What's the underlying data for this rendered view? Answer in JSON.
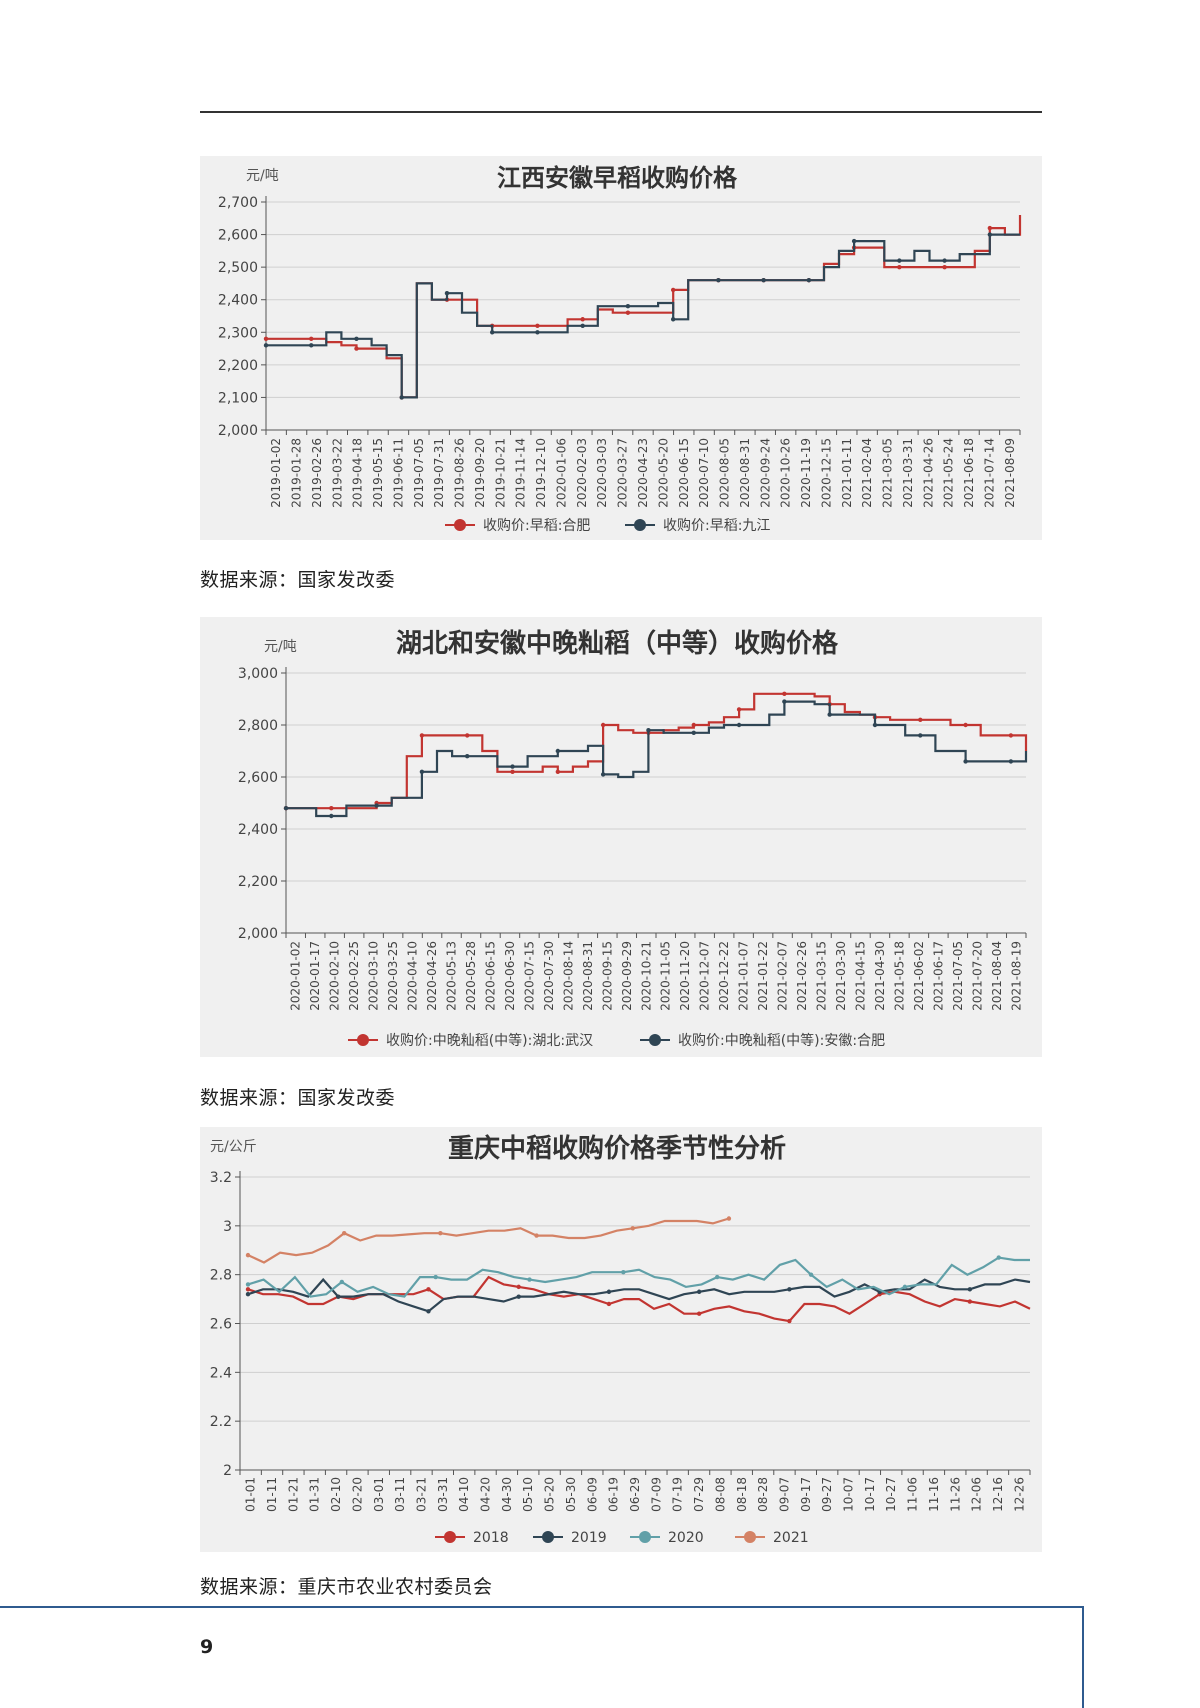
{
  "page_number": "9",
  "sources": [
    "数据来源：国家发改委",
    "数据来源：国家发改委",
    "数据来源：重庆市农业农村委员会"
  ],
  "chart_data": [
    {
      "type": "line",
      "title": "江西安徽早稻收购价格",
      "unit": "元/吨",
      "ylim": [
        2000,
        2700
      ],
      "yticks": [
        "2,000",
        "2,100",
        "2,200",
        "2,300",
        "2,400",
        "2,500",
        "2,600",
        "2,700"
      ],
      "x_tick_labels": [
        "2019-01-02",
        "2019-01-28",
        "2019-02-26",
        "2019-03-22",
        "2019-04-18",
        "2019-05-15",
        "2019-06-11",
        "2019-07-05",
        "2019-07-31",
        "2019-08-26",
        "2019-09-20",
        "2019-10-21",
        "2019-11-14",
        "2019-12-10",
        "2020-01-06",
        "2020-02-03",
        "2020-03-03",
        "2020-03-27",
        "2020-04-23",
        "2020-05-20",
        "2020-06-15",
        "2020-07-10",
        "2020-08-05",
        "2020-08-31",
        "2020-09-24",
        "2020-10-26",
        "2020-11-19",
        "2020-12-15",
        "2021-01-11",
        "2021-02-04",
        "2021-03-05",
        "2021-03-31",
        "2021-04-26",
        "2021-05-24",
        "2021-06-18",
        "2021-07-14",
        "2021-08-09"
      ],
      "series": [
        {
          "name": "收购价:早稻:合肥",
          "color": "#c23531",
          "values": [
            2280,
            2280,
            2280,
            2280,
            2270,
            2260,
            2250,
            2250,
            2220,
            2100,
            2450,
            2400,
            2400,
            2400,
            2320,
            2320,
            2320,
            2320,
            2320,
            2320,
            2340,
            2340,
            2370,
            2360,
            2360,
            2360,
            2360,
            2430,
            2460,
            2460,
            2460,
            2460,
            2460,
            2460,
            2460,
            2460,
            2460,
            2510,
            2540,
            2560,
            2560,
            2500,
            2500,
            2500,
            2500,
            2500,
            2500,
            2550,
            2620,
            2600,
            2660
          ]
        },
        {
          "name": "收购价:早稻:九江",
          "color": "#2f4554",
          "values": [
            2260,
            2260,
            2260,
            2260,
            2300,
            2280,
            2280,
            2260,
            2230,
            2100,
            2450,
            2400,
            2420,
            2360,
            2320,
            2300,
            2300,
            2300,
            2300,
            2300,
            2320,
            2320,
            2380,
            2380,
            2380,
            2380,
            2390,
            2340,
            2460,
            2460,
            2460,
            2460,
            2460,
            2460,
            2460,
            2460,
            2460,
            2500,
            2550,
            2580,
            2580,
            2520,
            2520,
            2550,
            2520,
            2520,
            2540,
            2540,
            2600,
            2600,
            2600
          ]
        }
      ]
    },
    {
      "type": "line",
      "title": "湖北和安徽中晚籼稻（中等）收购价格",
      "unit": "元/吨",
      "ylim": [
        2000,
        3000
      ],
      "yticks": [
        "2,000",
        "2,200",
        "2,400",
        "2,600",
        "2,800",
        "3,000"
      ],
      "x_tick_labels": [
        "2020-01-02",
        "2020-01-17",
        "2020-02-10",
        "2020-02-25",
        "2020-03-10",
        "2020-03-25",
        "2020-04-10",
        "2020-04-26",
        "2020-05-13",
        "2020-05-28",
        "2020-06-15",
        "2020-06-30",
        "2020-07-15",
        "2020-07-30",
        "2020-08-14",
        "2020-08-31",
        "2020-09-15",
        "2020-09-29",
        "2020-10-21",
        "2020-11-05",
        "2020-11-20",
        "2020-12-07",
        "2020-12-22",
        "2021-01-07",
        "2021-01-22",
        "2021-02-07",
        "2021-02-26",
        "2021-03-15",
        "2021-03-30",
        "2021-04-15",
        "2021-04-30",
        "2021-05-18",
        "2021-06-02",
        "2021-06-17",
        "2021-07-05",
        "2021-07-20",
        "2021-08-04",
        "2021-08-19"
      ],
      "series": [
        {
          "name": "收购价:中晚籼稻(中等):湖北:武汉",
          "color": "#c23531",
          "values": [
            2480,
            2480,
            2480,
            2480,
            2480,
            2480,
            2500,
            2520,
            2680,
            2760,
            2760,
            2760,
            2760,
            2700,
            2620,
            2620,
            2620,
            2640,
            2620,
            2640,
            2660,
            2800,
            2780,
            2770,
            2770,
            2780,
            2790,
            2800,
            2810,
            2830,
            2860,
            2920,
            2920,
            2920,
            2920,
            2910,
            2880,
            2850,
            2840,
            2830,
            2820,
            2820,
            2820,
            2820,
            2800,
            2800,
            2760,
            2760,
            2760,
            2700
          ]
        },
        {
          "name": "收购价:中晚籼稻(中等):安徽:合肥",
          "color": "#2f4554",
          "values": [
            2480,
            2480,
            2450,
            2450,
            2490,
            2490,
            2490,
            2520,
            2520,
            2620,
            2700,
            2680,
            2680,
            2680,
            2640,
            2640,
            2680,
            2680,
            2700,
            2700,
            2720,
            2610,
            2600,
            2620,
            2780,
            2770,
            2770,
            2770,
            2790,
            2800,
            2800,
            2800,
            2840,
            2890,
            2890,
            2880,
            2840,
            2840,
            2840,
            2800,
            2800,
            2760,
            2760,
            2700,
            2700,
            2660,
            2660,
            2660,
            2660,
            2700
          ]
        }
      ]
    },
    {
      "type": "line",
      "title": "重庆中稻收购价格季节性分析",
      "unit": "元/公斤",
      "ylim": [
        2,
        3.2
      ],
      "yticks": [
        "2",
        "2.2",
        "2.4",
        "2.6",
        "2.8",
        "3",
        "3.2"
      ],
      "x_tick_labels": [
        "01-01",
        "01-11",
        "01-21",
        "01-31",
        "02-10",
        "02-20",
        "03-01",
        "03-11",
        "03-21",
        "03-31",
        "04-10",
        "04-20",
        "04-30",
        "05-10",
        "05-20",
        "05-30",
        "06-09",
        "06-19",
        "06-29",
        "07-09",
        "07-19",
        "07-29",
        "08-08",
        "08-18",
        "08-28",
        "09-07",
        "09-17",
        "09-27",
        "10-07",
        "10-17",
        "10-27",
        "11-06",
        "11-16",
        "11-26",
        "12-06",
        "12-16",
        "12-26"
      ],
      "series": [
        {
          "name": "2018",
          "color": "#c23531",
          "values": [
            2.74,
            2.72,
            2.72,
            2.71,
            2.68,
            2.68,
            2.71,
            2.7,
            2.72,
            2.72,
            2.72,
            2.72,
            2.74,
            2.7,
            2.71,
            2.71,
            2.79,
            2.76,
            2.75,
            2.74,
            2.72,
            2.71,
            2.72,
            2.7,
            2.68,
            2.7,
            2.7,
            2.66,
            2.68,
            2.64,
            2.64,
            2.66,
            2.67,
            2.65,
            2.64,
            2.62,
            2.61,
            2.68,
            2.68,
            2.67,
            2.64,
            2.68,
            2.72,
            2.73,
            2.72,
            2.69,
            2.67,
            2.7,
            2.69,
            2.68,
            2.67,
            2.69,
            2.66
          ]
        },
        {
          "name": "2019",
          "color": "#2f4554",
          "values": [
            2.72,
            2.74,
            2.74,
            2.73,
            2.71,
            2.78,
            2.71,
            2.71,
            2.72,
            2.72,
            2.69,
            2.67,
            2.65,
            2.7,
            2.71,
            2.71,
            2.7,
            2.69,
            2.71,
            2.71,
            2.72,
            2.73,
            2.72,
            2.72,
            2.73,
            2.74,
            2.74,
            2.72,
            2.7,
            2.72,
            2.73,
            2.74,
            2.72,
            2.73,
            2.73,
            2.73,
            2.74,
            2.75,
            2.75,
            2.71,
            2.73,
            2.76,
            2.73,
            2.74,
            2.74,
            2.78,
            2.75,
            2.74,
            2.74,
            2.76,
            2.76,
            2.78,
            2.77
          ]
        },
        {
          "name": "2020",
          "color": "#61a0a8",
          "values": [
            2.76,
            2.78,
            2.73,
            2.79,
            2.71,
            2.72,
            2.77,
            2.73,
            2.75,
            2.72,
            2.71,
            2.79,
            2.79,
            2.78,
            2.78,
            2.82,
            2.81,
            2.79,
            2.78,
            2.77,
            2.78,
            2.79,
            2.81,
            2.81,
            2.81,
            2.82,
            2.79,
            2.78,
            2.75,
            2.76,
            2.79,
            2.78,
            2.8,
            2.78,
            2.84,
            2.86,
            2.8,
            2.75,
            2.78,
            2.74,
            2.75,
            2.72,
            2.75,
            2.76,
            2.76,
            2.84,
            2.8,
            2.83,
            2.87,
            2.86,
            2.86
          ]
        },
        {
          "name": "2021",
          "color": "#d48265",
          "values": [
            2.88,
            2.85,
            2.89,
            2.88,
            2.89,
            2.92,
            2.97,
            2.94,
            2.96,
            2.96,
            2.965,
            2.97,
            2.97,
            2.96,
            2.97,
            2.98,
            2.98,
            2.99,
            2.96,
            2.96,
            2.95,
            2.95,
            2.96,
            2.98,
            2.99,
            3.0,
            3.02,
            3.02,
            3.02,
            3.01,
            3.03
          ]
        }
      ]
    }
  ]
}
